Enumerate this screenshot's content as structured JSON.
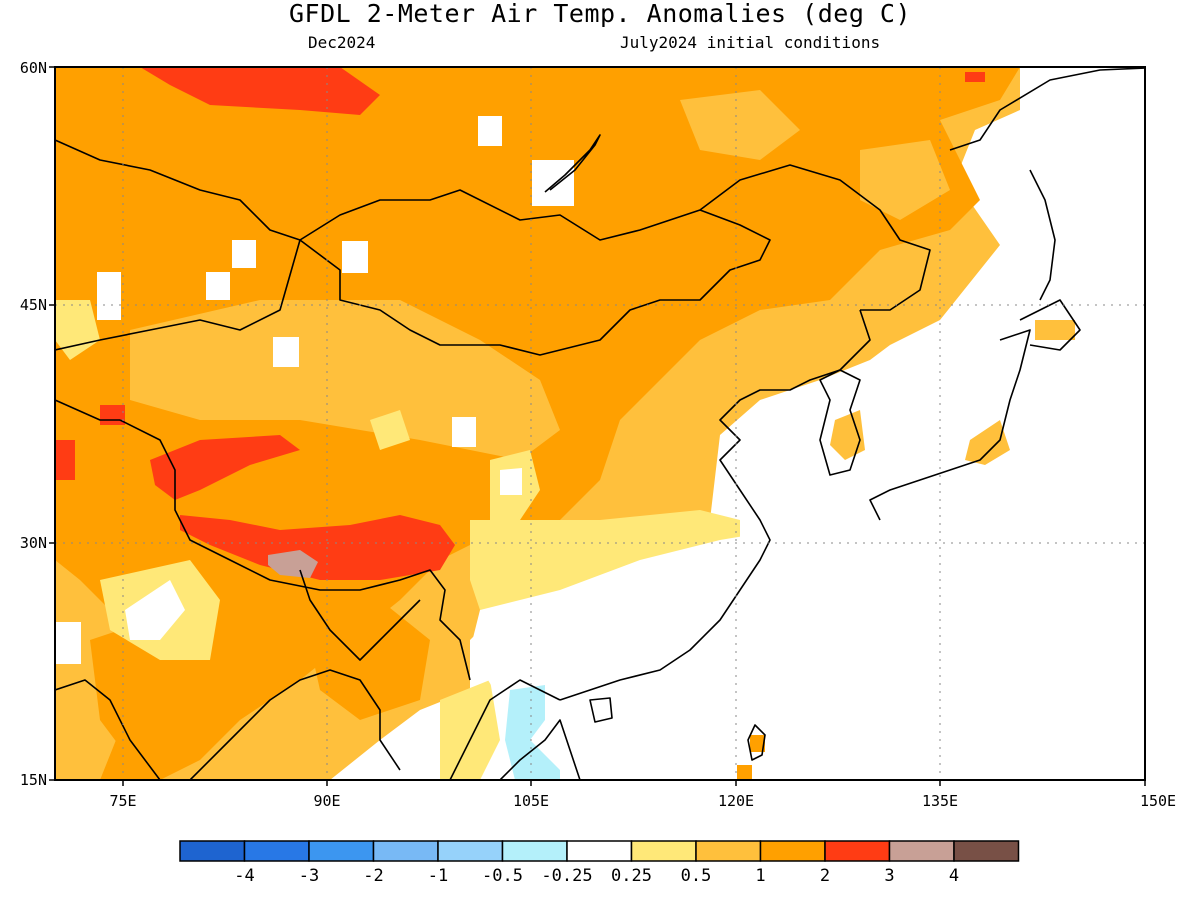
{
  "title": "GFDL 2-Meter Air Temp. Anomalies (deg C)",
  "subtitle_left": "Dec2024",
  "subtitle_right": "July2024 initial conditions",
  "map": {
    "lon_range": [
      70,
      150
    ],
    "lat_range": [
      15,
      60
    ],
    "lat_ticks": [
      "15N",
      "30N",
      "45N",
      "60N"
    ],
    "lon_ticks": [
      "75E",
      "90E",
      "105E",
      "120E",
      "135E",
      "150E"
    ],
    "gridlines": "dotted"
  },
  "colorbar": {
    "labels": [
      "-4",
      "-3",
      "-2",
      "-1",
      "-0.5",
      "-0.25",
      "0.25",
      "0.5",
      "1",
      "2",
      "3",
      "4"
    ],
    "colors": [
      "#1e64d0",
      "#2878e6",
      "#3c96f0",
      "#78b9f5",
      "#96d2fa",
      "#b4f0fa",
      "#ffffff",
      "#ffe878",
      "#ffc03c",
      "#ffa000",
      "#ff3c14",
      "#c8a096",
      "#785046"
    ]
  },
  "colors": {
    "anom_0_25_0_5": "#ffe878",
    "anom_0_5_1": "#ffc03c",
    "anom_1_2": "#ffa000",
    "anom_2_3": "#ff3c14",
    "anom_3_4": "#c8a096",
    "anom_n025_n05": "#b4f0fa",
    "ocean_masked": "#ffffff"
  }
}
